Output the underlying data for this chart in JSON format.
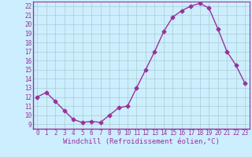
{
  "x": [
    0,
    1,
    2,
    3,
    4,
    5,
    6,
    7,
    8,
    9,
    10,
    11,
    12,
    13,
    14,
    15,
    16,
    17,
    18,
    19,
    20,
    21,
    22,
    23
  ],
  "y": [
    12.0,
    12.5,
    11.5,
    10.5,
    9.5,
    9.2,
    9.3,
    9.2,
    10.0,
    10.8,
    11.0,
    13.0,
    15.0,
    17.0,
    19.2,
    20.8,
    21.5,
    22.0,
    22.3,
    21.8,
    19.5,
    17.0,
    15.5,
    13.5
  ],
  "line_color": "#993399",
  "marker": "D",
  "marker_size": 2.5,
  "bg_color": "#cceeff",
  "grid_color": "#aacccc",
  "label_color": "#993399",
  "xlabel": "Windchill (Refroidissement éolien,°C)",
  "ylim": [
    8.5,
    22.5
  ],
  "xlim": [
    -0.5,
    23.5
  ],
  "yticks": [
    9,
    10,
    11,
    12,
    13,
    14,
    15,
    16,
    17,
    18,
    19,
    20,
    21,
    22
  ],
  "xticks": [
    0,
    1,
    2,
    3,
    4,
    5,
    6,
    7,
    8,
    9,
    10,
    11,
    12,
    13,
    14,
    15,
    16,
    17,
    18,
    19,
    20,
    21,
    22,
    23
  ],
  "font_size": 5.5,
  "xlabel_font_size": 6.5,
  "lw": 1.0
}
